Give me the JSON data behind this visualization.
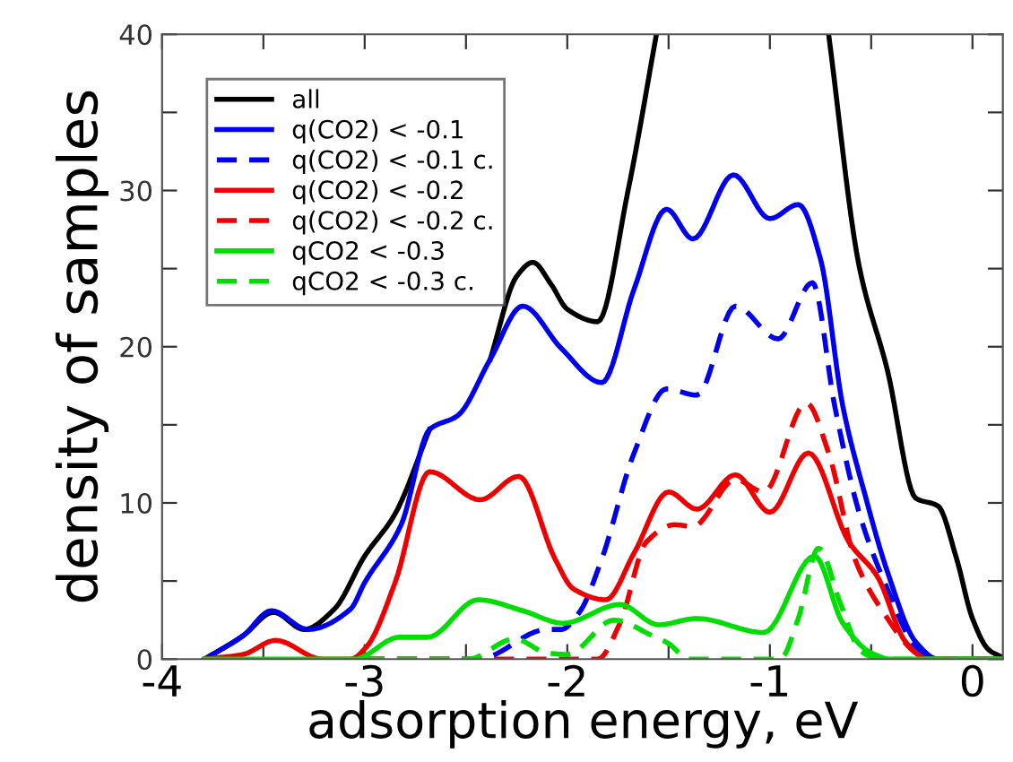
{
  "chart_data": {
    "type": "line",
    "xlabel": "adsorption energy, eV",
    "ylabel": "density of samples",
    "xlim": [
      -4,
      0.15
    ],
    "ylim": [
      0,
      40
    ],
    "xticks": [
      -4,
      {
        "value": -3.5,
        "label": null
      },
      -3,
      {
        "value": -2.5,
        "label": null
      },
      -2,
      {
        "value": -1.5,
        "label": null
      },
      -1,
      {
        "value": -0.5,
        "label": null
      },
      0
    ],
    "yticks": [
      0,
      {
        "value": 5,
        "label": null
      },
      10,
      {
        "value": 15,
        "label": null
      },
      20,
      {
        "value": 25,
        "label": null
      },
      30,
      {
        "value": 35,
        "label": null
      },
      40
    ],
    "grid": false,
    "legend": "top left",
    "marker": "none",
    "series": [
      {
        "name": "all",
        "color": "#000000",
        "line_style": "solid",
        "x": [
          -3.79,
          -3.6,
          -3.45,
          -3.3,
          -3.15,
          -3.0,
          -2.85,
          -2.68,
          -2.54,
          -2.38,
          -2.25,
          -2.17,
          -2.08,
          -2.0,
          -1.85,
          -1.7,
          -1.56,
          -1.2,
          -0.71,
          -0.56,
          -0.42,
          -0.28,
          -0.17,
          -0.08,
          0.0,
          0.08,
          0.15
        ],
        "values": [
          0,
          1.5,
          3.0,
          1.9,
          3.2,
          6.6,
          9.3,
          14.7,
          null,
          19.2,
          24.5,
          25.4,
          24.0,
          22.4,
          21.6,
          30,
          40,
          null,
          40,
          25.2,
          18.5,
          10.3,
          9.8,
          6.5,
          2.6,
          0.6,
          0.1
        ]
      },
      {
        "name": "q(CO2) < -0.1",
        "color": "#0000ee",
        "line_style": "solid",
        "x": [
          -3.79,
          -3.6,
          -3.46,
          -3.28,
          -3.07,
          -3.0,
          -2.82,
          -2.68,
          -2.54,
          -2.38,
          -2.22,
          -2.03,
          -1.83,
          -1.67,
          -1.51,
          -1.38,
          -1.18,
          -1.0,
          -0.86,
          -0.75,
          -0.64,
          -0.53,
          -0.42,
          -0.28,
          -0.17,
          0.15
        ],
        "values": [
          0,
          1.5,
          3.1,
          1.9,
          3.2,
          4.9,
          8.6,
          14.7,
          15.6,
          19.2,
          22.6,
          19.9,
          17.7,
          23.7,
          28.8,
          26.9,
          31.0,
          28.2,
          29.1,
          25.6,
          16.2,
          10.5,
          5.6,
          1.1,
          0,
          0
        ]
      },
      {
        "name": "q(CO2) < -0.1 c.",
        "color": "#0000ee",
        "line_style": "dashed",
        "x": [
          -3.0,
          -2.44,
          -2.1,
          -2.03,
          -1.94,
          -1.83,
          -1.67,
          -1.51,
          -1.36,
          -1.17,
          -0.96,
          -0.79,
          -0.68,
          -0.56,
          -0.42,
          -0.28,
          -0.17,
          0.15
        ],
        "values": [
          0,
          0,
          1.9,
          1.9,
          3.0,
          6.4,
          13.2,
          17.3,
          16.9,
          22.6,
          20.5,
          24.1,
          16.2,
          9.4,
          4.5,
          0.8,
          0,
          0
        ]
      },
      {
        "name": "q(CO2) < -0.2",
        "color": "#ee0000",
        "line_style": "solid",
        "x": [
          -3.79,
          -3.6,
          -3.44,
          -3.21,
          -3.07,
          -2.99,
          -2.85,
          -2.68,
          -2.43,
          -2.24,
          -2.06,
          -1.97,
          -1.81,
          -1.67,
          -1.5,
          -1.36,
          -1.17,
          -1.0,
          -0.81,
          -0.61,
          -0.47,
          -0.33,
          -0.22,
          0.15
        ],
        "values": [
          0,
          0.3,
          1.2,
          0,
          0,
          0.8,
          4.9,
          12.0,
          10.2,
          11.7,
          6.4,
          4.5,
          3.8,
          6.8,
          10.7,
          9.6,
          11.8,
          9.4,
          13.2,
          7.5,
          5.3,
          1.1,
          0,
          0
        ]
      },
      {
        "name": "q(CO2) < -0.2 c.",
        "color": "#ee0000",
        "line_style": "dashed",
        "x": [
          -3.0,
          -1.85,
          -1.74,
          -1.61,
          -1.47,
          -1.38,
          -1.17,
          -1.03,
          -0.82,
          -0.71,
          -0.58,
          -0.44,
          -0.28,
          -0.22,
          0.15
        ],
        "values": [
          0,
          0,
          2.3,
          7.5,
          8.6,
          8.5,
          11.5,
          10.7,
          16.4,
          13.2,
          6.4,
          3.0,
          0.4,
          0,
          0
        ]
      },
      {
        "name": "qCO2 < -0.3",
        "color": "#00dd00",
        "line_style": "solid",
        "x": [
          -3.79,
          -3.05,
          -2.83,
          -2.69,
          -2.44,
          -2.22,
          -2.02,
          -1.74,
          -1.55,
          -1.36,
          -1.03,
          -0.78,
          -0.64,
          -0.5,
          -0.4,
          0.15
        ],
        "values": [
          0,
          0,
          1.4,
          1.4,
          3.8,
          3.1,
          2.3,
          3.5,
          2.2,
          2.6,
          1.7,
          6.6,
          2.3,
          0.4,
          0,
          0
        ]
      },
      {
        "name": "qCO2 < -0.3 c.",
        "color": "#00dd00",
        "line_style": "dashed",
        "x": [
          -3.0,
          -2.49,
          -2.26,
          -2.1,
          -2.0,
          -1.77,
          -1.58,
          -1.5,
          -1.4,
          -0.95,
          -0.86,
          -0.76,
          -0.65,
          -0.55,
          -0.45,
          0.15
        ],
        "values": [
          0,
          0,
          1.3,
          0.4,
          0.3,
          2.5,
          1.5,
          1.0,
          0,
          0,
          2.6,
          7.1,
          3.5,
          0.5,
          0,
          0
        ]
      }
    ]
  }
}
